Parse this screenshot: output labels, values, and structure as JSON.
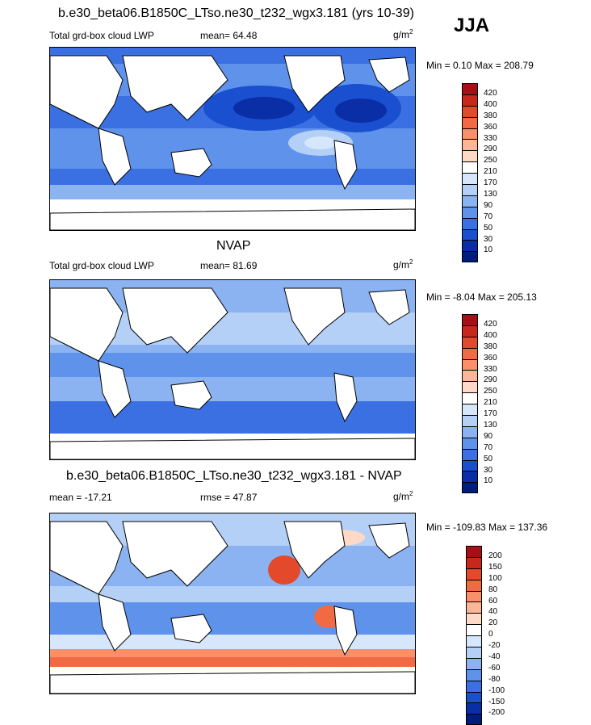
{
  "season": "JJA",
  "panels": [
    {
      "title": "b.e30_beta06.B1850C_LTso.ne30_t232_wgx3.181 (yrs 10-39)",
      "left_label": "Total grd-box cloud LWP",
      "stat": "mean=  64.48",
      "unit": "g/m",
      "unit_sup": "2",
      "minmax": "Min =   0.10 Max = 208.79",
      "levels": [
        "420",
        "400",
        "380",
        "360",
        "330",
        "290",
        "250",
        "210",
        "170",
        "130",
        "90",
        "70",
        "50",
        "30",
        "10"
      ],
      "colors": [
        "#a50f15",
        "#c8271b",
        "#e24a2b",
        "#f26a44",
        "#f9906a",
        "#fbb597",
        "#fdd9c6",
        "#ffffff",
        "#d6e6fb",
        "#b4d0f7",
        "#8bb3f1",
        "#5e92eb",
        "#3b70e2",
        "#1a4fcf",
        "#0a2ea6",
        "#001c7f"
      ]
    },
    {
      "title": "NVAP",
      "left_label": "Total grd-box cloud LWP",
      "stat": "mean=  81.69",
      "unit": "g/m",
      "unit_sup": "2",
      "minmax": "Min =  -8.04 Max = 205.13",
      "levels": [
        "420",
        "400",
        "380",
        "360",
        "330",
        "290",
        "250",
        "210",
        "170",
        "130",
        "90",
        "70",
        "50",
        "30",
        "10"
      ],
      "colors": [
        "#a50f15",
        "#c8271b",
        "#e24a2b",
        "#f26a44",
        "#f9906a",
        "#fbb597",
        "#fdd9c6",
        "#ffffff",
        "#d6e6fb",
        "#b4d0f7",
        "#8bb3f1",
        "#5e92eb",
        "#3b70e2",
        "#1a4fcf",
        "#0a2ea6",
        "#001c7f"
      ]
    },
    {
      "title": "b.e30_beta06.B1850C_LTso.ne30_t232_wgx3.181 - NVAP",
      "left_label": "mean = -17.21",
      "stat": "rmse =  47.87",
      "unit": "g/m",
      "unit_sup": "2",
      "minmax": "Min = -109.83 Max = 137.36",
      "levels": [
        "200",
        "150",
        "100",
        "80",
        "60",
        "40",
        "20",
        "0",
        "-20",
        "-40",
        "-60",
        "-80",
        "-100",
        "-150",
        "-200"
      ],
      "colors": [
        "#a50f15",
        "#c8271b",
        "#e24a2b",
        "#f26a44",
        "#f9906a",
        "#fbb597",
        "#fdd9c6",
        "#ffffff",
        "#d6e6fb",
        "#b4d0f7",
        "#8bb3f1",
        "#5e92eb",
        "#3b70e2",
        "#1a4fcf",
        "#0a2ea6",
        "#001c7f"
      ]
    }
  ]
}
